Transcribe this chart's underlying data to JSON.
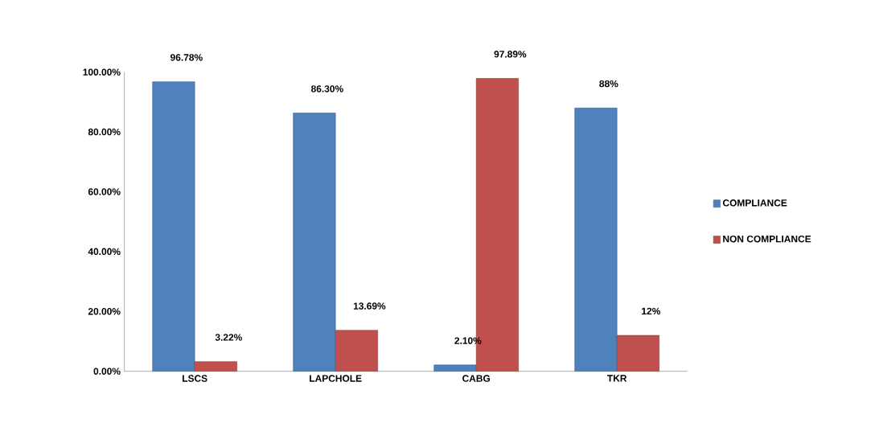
{
  "chart_data": {
    "type": "bar",
    "categories": [
      "LSCS",
      "LAPCHOLE",
      "CABG",
      "TKR"
    ],
    "series": [
      {
        "name": "COMPLIANCE",
        "color": "#4f81bd",
        "values": [
          96.78,
          86.3,
          2.1,
          88
        ],
        "value_labels": [
          "96.78%",
          "86.30%",
          "2.10%",
          "88%"
        ]
      },
      {
        "name": "NON COMPLIANCE",
        "color": "#c0504d",
        "values": [
          3.22,
          13.69,
          97.89,
          12
        ],
        "value_labels": [
          "3.22%",
          "13.69%",
          "97.89%",
          "12%"
        ]
      }
    ],
    "ylim": [
      0,
      100
    ],
    "yticks": [
      {
        "value": 0,
        "label": "0.00%"
      },
      {
        "value": 20,
        "label": "20.00%"
      },
      {
        "value": 40,
        "label": "40.00%"
      },
      {
        "value": 60,
        "label": "60.00%"
      },
      {
        "value": 80,
        "label": "80.00%"
      },
      {
        "value": 100,
        "label": "100.00%"
      }
    ],
    "legend": "right"
  }
}
